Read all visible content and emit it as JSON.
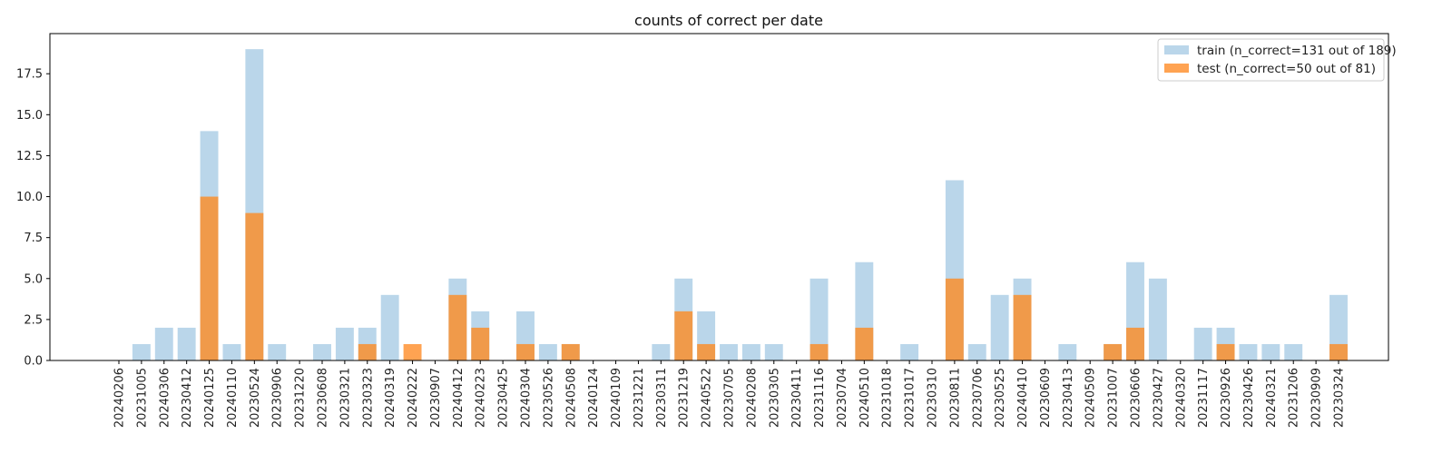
{
  "chart_data": {
    "type": "bar",
    "title": "counts of correct per date",
    "xlabel": "",
    "ylabel": "",
    "ylim": [
      0,
      19.95
    ],
    "yticks": [
      "0.0",
      "2.5",
      "5.0",
      "7.5",
      "10.0",
      "12.5",
      "15.0",
      "17.5"
    ],
    "ytick_values": [
      0,
      2.5,
      5,
      7.5,
      10,
      12.5,
      15,
      17.5
    ],
    "grid": false,
    "legend_position": "top-right",
    "colors": {
      "train": "#bad6ea",
      "test": "#ffa352",
      "overlap": "#f09a4a"
    },
    "categories": [
      "20240206",
      "20231005",
      "20240306",
      "20230412",
      "20240125",
      "20240110",
      "20230524",
      "20230906",
      "20231220",
      "20230608",
      "20230321",
      "20230323",
      "20240319",
      "20240222",
      "20230907",
      "20240412",
      "20240223",
      "20230425",
      "20240304",
      "20230526",
      "20240508",
      "20240124",
      "20240109",
      "20231221",
      "20230311",
      "20231219",
      "20240522",
      "20230705",
      "20240208",
      "20230305",
      "20230411",
      "20231116",
      "20230704",
      "20240510",
      "20231018",
      "20231017",
      "20230310",
      "20230811",
      "20230706",
      "20230525",
      "20240410",
      "20230609",
      "20230413",
      "20240509",
      "20231007",
      "20230606",
      "20230427",
      "20240320",
      "20231117",
      "20230926",
      "20230426",
      "20240321",
      "20231206",
      "20230909",
      "20230324"
    ],
    "series": [
      {
        "name": "train (n_correct=131 out of 189)",
        "values": [
          0,
          1,
          2,
          2,
          14,
          1,
          19,
          1,
          0,
          1,
          2,
          2,
          4,
          0,
          0,
          5,
          3,
          0,
          3,
          1,
          1,
          0,
          0,
          0,
          1,
          5,
          3,
          1,
          1,
          1,
          0,
          5,
          0,
          6,
          0,
          1,
          0,
          11,
          1,
          4,
          5,
          0,
          1,
          0,
          1,
          6,
          5,
          0,
          2,
          2,
          1,
          1,
          1,
          0,
          4
        ]
      },
      {
        "name": "test (n_correct=50 out of 81)",
        "values": [
          0,
          0,
          0,
          0,
          10,
          0,
          9,
          0,
          0,
          0,
          0,
          1,
          0,
          1,
          0,
          4,
          2,
          0,
          1,
          0,
          1,
          0,
          0,
          0,
          0,
          3,
          1,
          0,
          0,
          0,
          0,
          1,
          0,
          2,
          0,
          0,
          0,
          5,
          0,
          0,
          4,
          0,
          0,
          0,
          1,
          2,
          0,
          0,
          0,
          1,
          0,
          0,
          0,
          0,
          1
        ]
      }
    ]
  }
}
